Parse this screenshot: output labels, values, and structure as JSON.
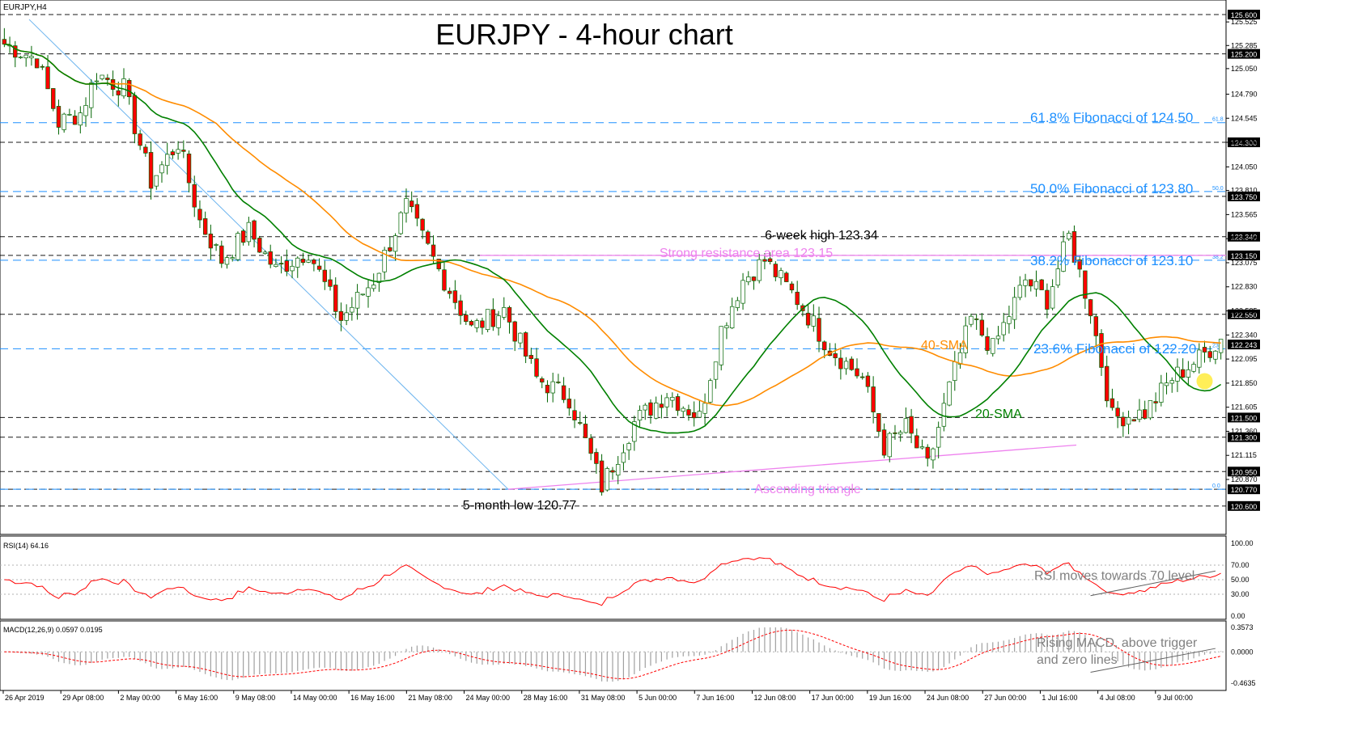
{
  "window": {
    "symbol_label": "EURJPY,H4"
  },
  "title": "EURJPY - 4-hour chart",
  "chart_data": {
    "type": "candlestick",
    "main": {
      "ylim": [
        120.5,
        125.6
      ],
      "ticks": [
        "125.525",
        "125.285",
        "125.050",
        "124.790",
        "124.545",
        "124.300",
        "124.050",
        "123.810",
        "123.565",
        "123.320",
        "123.075",
        "122.830",
        "122.585",
        "122.340",
        "122.095",
        "121.850",
        "121.605",
        "121.360",
        "121.115",
        "120.870"
      ],
      "price_tags": [
        {
          "label": "125.600",
          "value": 125.6
        },
        {
          "label": "125.200",
          "value": 125.2
        },
        {
          "label": "124.300",
          "value": 124.3
        },
        {
          "label": "123.750",
          "value": 123.75
        },
        {
          "label": "123.340",
          "value": 123.34
        },
        {
          "label": "123.150",
          "value": 123.15
        },
        {
          "label": "122.550",
          "value": 122.55
        },
        {
          "label": "122.243",
          "value": 122.243
        },
        {
          "label": "121.500",
          "value": 121.5
        },
        {
          "label": "121.300",
          "value": 121.3
        },
        {
          "label": "120.950",
          "value": 120.95
        },
        {
          "label": "120.770",
          "value": 120.77
        },
        {
          "label": "120.600",
          "value": 120.6
        }
      ],
      "fib_levels": [
        {
          "label": "61.8% Fibonacci of 124.50",
          "tag": "61.8",
          "value": 124.5
        },
        {
          "label": "50.0% Fibonacci of 123.80",
          "tag": "50.0",
          "value": 123.8
        },
        {
          "label": "38.2% Fibonacci of 123.10",
          "tag": "38.2",
          "value": 123.1
        },
        {
          "label": "23.6% Fibonacci of 122.20",
          "tag": "23.6",
          "value": 122.2
        },
        {
          "label": "",
          "tag": "0.0",
          "value": 120.77
        }
      ],
      "resistance": {
        "label": "Strong resistance area 123.15",
        "value": 123.15
      },
      "annotations": {
        "high": "6-week high 123.34",
        "low": "5-month low 120.77",
        "triangle": "Ascending triangle",
        "sma40": "40-SMA",
        "sma20": "20-SMA"
      },
      "series_names": [
        "20-SMA",
        "40-SMA"
      ],
      "path": [
        [
          0,
          125.3
        ],
        [
          6,
          125.15
        ],
        [
          10,
          124.5
        ],
        [
          14,
          124.6
        ],
        [
          17,
          125.0
        ],
        [
          22,
          124.85
        ],
        [
          27,
          123.9
        ],
        [
          32,
          124.3
        ],
        [
          36,
          123.5
        ],
        [
          40,
          123.1
        ],
        [
          45,
          123.4
        ],
        [
          50,
          123.0
        ],
        [
          56,
          123.2
        ],
        [
          62,
          122.5
        ],
        [
          68,
          122.9
        ],
        [
          74,
          123.65
        ],
        [
          80,
          123.0
        ],
        [
          86,
          122.4
        ],
        [
          92,
          122.6
        ],
        [
          98,
          121.9
        ],
        [
          104,
          121.7
        ],
        [
          110,
          120.8
        ],
        [
          116,
          121.45
        ],
        [
          122,
          121.75
        ],
        [
          128,
          121.5
        ],
        [
          132,
          122.4
        ],
        [
          136,
          122.9
        ],
        [
          140,
          123.1
        ],
        [
          146,
          122.7
        ],
        [
          152,
          122.2
        ],
        [
          158,
          121.9
        ],
        [
          162,
          121.2
        ],
        [
          166,
          121.4
        ],
        [
          170,
          121.0
        ],
        [
          174,
          121.8
        ],
        [
          178,
          122.5
        ],
        [
          182,
          122.2
        ],
        [
          188,
          122.9
        ],
        [
          192,
          122.7
        ],
        [
          196,
          123.34
        ],
        [
          200,
          122.6
        ],
        [
          204,
          121.5
        ],
        [
          210,
          121.55
        ],
        [
          215,
          121.9
        ],
        [
          220,
          122.1
        ],
        [
          224,
          122.3
        ]
      ],
      "path_spec": "pairs of [bar index 0-224, close price]"
    },
    "x_labels": [
      "26 Apr 2019",
      "29 Apr 08:00",
      "2 May 00:00",
      "6 May 16:00",
      "9 May 08:00",
      "14 May 00:00",
      "16 May 16:00",
      "21 May 08:00",
      "24 May 00:00",
      "28 May 16:00",
      "31 May 08:00",
      "5 Jun 00:00",
      "7 Jun 16:00",
      "12 Jun 08:00",
      "17 Jun 00:00",
      "19 Jun 16:00",
      "24 Jun 08:00",
      "27 Jun 00:00",
      "1 Jul 16:00",
      "4 Jul 08:00",
      "9 Jul 00:00"
    ],
    "rsi": {
      "label": "RSI(14) 64.16",
      "ylim": [
        0,
        100
      ],
      "ticks": [
        "100.00",
        "70.00",
        "50.00",
        "30.00",
        "0.00"
      ],
      "annotation": "RSI moves towards 70 level"
    },
    "macd": {
      "label": "MACD(12,26,9) 0.0597 0.0195",
      "ylim": [
        -0.52,
        0.36
      ],
      "ticks": [
        "0.3573",
        "0.0000",
        "-0.4635"
      ],
      "annotation_line1": "Rising MACD, above trigger",
      "annotation_line2": "and zero lines"
    }
  },
  "colors": {
    "grid": "#000000",
    "fib": "#1e90ff",
    "resistance": "#ee82ee",
    "sma20": "#008000",
    "sma40": "#ff8c00",
    "candle": "#ff0000",
    "wick": "#006400",
    "trend": "#6cb4ee",
    "rsi": "#ff0000",
    "macd_hist": "#a0a0a0",
    "annotation_gray": "#808080",
    "highlight": "#ffeb3b"
  }
}
